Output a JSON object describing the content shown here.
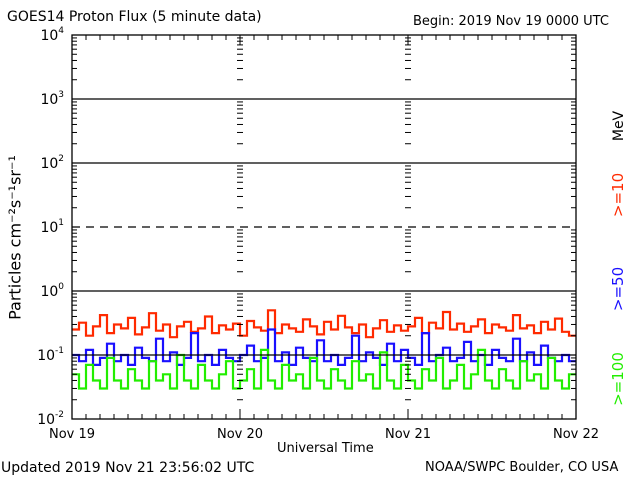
{
  "chart_data": {
    "type": "line",
    "title": "GOES14 Proton Flux (5 minute data)",
    "begin_label": "Begin: 2019 Nov 19 0000 UTC",
    "xlabel": "Universal Time",
    "ylabel": "Particles cm⁻²s⁻¹sr⁻¹",
    "y_scale": "log",
    "ylim": [
      0.01,
      10000
    ],
    "y_ticks": [
      {
        "base": "10",
        "exp": "4"
      },
      {
        "base": "10",
        "exp": "3"
      },
      {
        "base": "10",
        "exp": "2"
      },
      {
        "base": "10",
        "exp": "1"
      },
      {
        "base": "10",
        "exp": "0"
      },
      {
        "base": "10",
        "exp": "-1"
      },
      {
        "base": "10",
        "exp": "-2"
      }
    ],
    "x_ticks": [
      "Nov 19",
      "Nov 20",
      "Nov 21",
      "Nov 22"
    ],
    "xlim": [
      "2019-11-19T00:00",
      "2019-11-22T00:00"
    ],
    "threshold_line": {
      "value": 10,
      "style": "dashed"
    },
    "grid": "horizontal lines at decades",
    "energy_unit": "MeV",
    "x_hours_note": "values sampled hourly from 2019-11-19T00:00",
    "series": [
      {
        "name": ">=10",
        "color": "#ff2a00",
        "values": [
          0.25,
          0.32,
          0.2,
          0.28,
          0.42,
          0.22,
          0.3,
          0.26,
          0.38,
          0.21,
          0.27,
          0.45,
          0.24,
          0.3,
          0.19,
          0.28,
          0.33,
          0.23,
          0.26,
          0.4,
          0.22,
          0.29,
          0.25,
          0.31,
          0.2,
          0.34,
          0.27,
          0.24,
          0.5,
          0.22,
          0.3,
          0.26,
          0.23,
          0.36,
          0.28,
          0.21,
          0.33,
          0.25,
          0.41,
          0.27,
          0.22,
          0.3,
          0.19,
          0.26,
          0.35,
          0.23,
          0.29,
          0.24,
          0.28,
          0.38,
          0.22,
          0.32,
          0.26,
          0.47,
          0.25,
          0.31,
          0.23,
          0.28,
          0.36,
          0.22,
          0.3,
          0.27,
          0.24,
          0.42,
          0.26,
          0.29,
          0.22,
          0.33,
          0.25,
          0.37,
          0.23,
          0.2
        ]
      },
      {
        "name": ">=50",
        "color": "#1a10ff",
        "values": [
          0.1,
          0.08,
          0.12,
          0.07,
          0.09,
          0.15,
          0.08,
          0.1,
          0.07,
          0.13,
          0.09,
          0.08,
          0.18,
          0.08,
          0.11,
          0.07,
          0.09,
          0.22,
          0.08,
          0.1,
          0.07,
          0.12,
          0.09,
          0.08,
          0.1,
          0.14,
          0.08,
          0.09,
          0.25,
          0.08,
          0.11,
          0.07,
          0.13,
          0.09,
          0.08,
          0.17,
          0.08,
          0.1,
          0.07,
          0.09,
          0.2,
          0.08,
          0.11,
          0.09,
          0.07,
          0.15,
          0.08,
          0.12,
          0.09,
          0.07,
          0.22,
          0.08,
          0.1,
          0.13,
          0.08,
          0.09,
          0.16,
          0.08,
          0.1,
          0.07,
          0.12,
          0.09,
          0.08,
          0.18,
          0.08,
          0.11,
          0.07,
          0.14,
          0.09,
          0.08,
          0.1,
          0.08
        ]
      },
      {
        "name": ">=100",
        "color": "#22ee00",
        "values": [
          0.05,
          0.03,
          0.07,
          0.04,
          0.03,
          0.09,
          0.04,
          0.03,
          0.06,
          0.04,
          0.03,
          0.08,
          0.04,
          0.05,
          0.03,
          0.1,
          0.04,
          0.03,
          0.07,
          0.04,
          0.03,
          0.05,
          0.08,
          0.03,
          0.04,
          0.06,
          0.03,
          0.12,
          0.04,
          0.03,
          0.07,
          0.04,
          0.05,
          0.03,
          0.09,
          0.04,
          0.03,
          0.06,
          0.04,
          0.03,
          0.08,
          0.04,
          0.05,
          0.03,
          0.11,
          0.04,
          0.03,
          0.07,
          0.04,
          0.03,
          0.06,
          0.04,
          0.09,
          0.03,
          0.04,
          0.07,
          0.03,
          0.05,
          0.12,
          0.04,
          0.03,
          0.06,
          0.04,
          0.03,
          0.08,
          0.04,
          0.05,
          0.03,
          0.09,
          0.04,
          0.03,
          0.05
        ]
      }
    ]
  },
  "footer": {
    "updated": "Updated 2019 Nov 21 23:56:02 UTC",
    "credit": "NOAA/SWPC Boulder, CO USA"
  }
}
